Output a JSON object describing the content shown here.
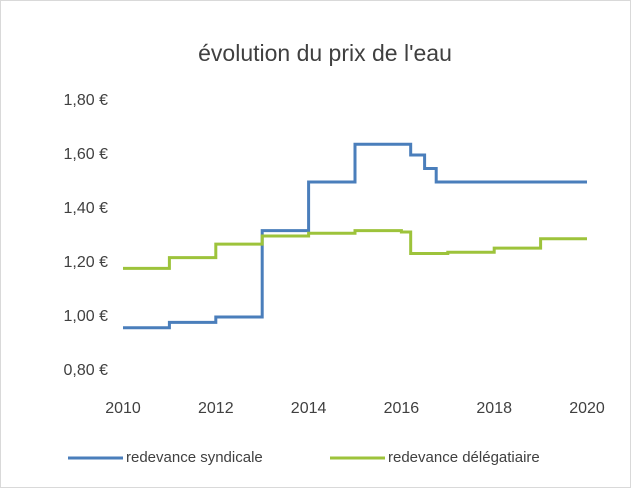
{
  "chart_data": {
    "type": "line",
    "step": "post",
    "title": "évolution du prix de l'eau",
    "series": [
      {
        "name": "redevance syndicale",
        "color": "#4a7ebb",
        "x": [
          2010,
          2011,
          2012,
          2013,
          2014,
          2015,
          2016.2,
          2016.5,
          2016.75,
          2020
        ],
        "values": [
          0.96,
          0.98,
          1.0,
          1.32,
          1.5,
          1.64,
          1.6,
          1.55,
          1.5,
          1.5
        ]
      },
      {
        "name": "redevance délégatiaire",
        "color": "#9dc33b",
        "x": [
          2010,
          2011,
          2012,
          2013,
          2014,
          2015,
          2016,
          2016.2,
          2017,
          2018,
          2019,
          2020
        ],
        "values": [
          1.18,
          1.22,
          1.27,
          1.3,
          1.31,
          1.32,
          1.315,
          1.235,
          1.24,
          1.255,
          1.29,
          1.29
        ]
      }
    ],
    "xlim": [
      2010,
      2020
    ],
    "xticks": [
      2010,
      2012,
      2014,
      2016,
      2018,
      2020
    ],
    "ylim": [
      0.8,
      1.8
    ],
    "yticks": [
      {
        "value": 0.8,
        "label": "0,80 €"
      },
      {
        "value": 1.0,
        "label": "1,00 €"
      },
      {
        "value": 1.2,
        "label": "1,20 €"
      },
      {
        "value": 1.4,
        "label": "1,40 €"
      },
      {
        "value": 1.6,
        "label": "1,60 €"
      },
      {
        "value": 1.8,
        "label": "1,80 €"
      }
    ],
    "grid": false,
    "legend": "bottom"
  }
}
